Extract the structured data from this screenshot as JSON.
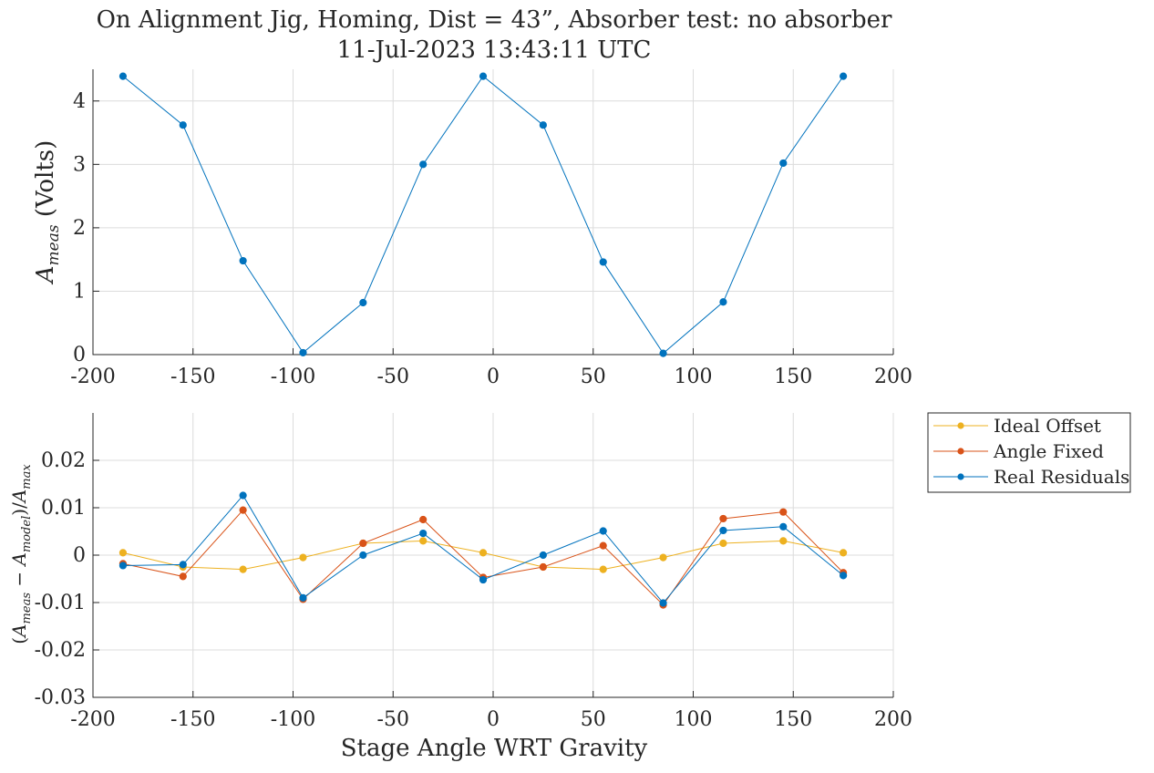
{
  "figure": {
    "title_line1": "On Alignment Jig, Homing, Dist = 43”, Absorber test: no absorber",
    "title_line2": "11-Jul-2023 13:43:11 UTC"
  },
  "chart_data": [
    {
      "type": "line",
      "title": "On Alignment Jig, Homing, Dist = 43”, Absorber test: no absorber — 11-Jul-2023 13:43:11 UTC",
      "xlabel": "",
      "ylabel": "A_meas (Volts)",
      "xlim": [
        -200,
        200
      ],
      "ylim": [
        0,
        4.5
      ],
      "xticks": [
        -200,
        -150,
        -100,
        -50,
        0,
        50,
        100,
        150,
        200
      ],
      "yticks": [
        0,
        1,
        2,
        3,
        4
      ],
      "xtick_labels": [
        "-200",
        "-150",
        "-100",
        "-50",
        "0",
        "50",
        "100",
        "150",
        "200"
      ],
      "ytick_labels": [
        "0",
        "1",
        "2",
        "3",
        "4"
      ],
      "grid": true,
      "x": [
        -185,
        -155,
        -125,
        -95,
        -65,
        -35,
        -5,
        25,
        55,
        85,
        115,
        145,
        175
      ],
      "series": [
        {
          "name": "",
          "color": "#0072BD",
          "values": [
            4.39,
            3.62,
            1.48,
            0.03,
            0.82,
            3.0,
            4.39,
            3.62,
            1.46,
            0.02,
            0.83,
            3.02,
            4.39
          ]
        }
      ]
    },
    {
      "type": "line",
      "xlabel": "Stage Angle WRT Gravity",
      "ylabel": "(A_meas − A_model)/A_max",
      "xlim": [
        -200,
        200
      ],
      "ylim": [
        -0.03,
        0.03
      ],
      "xticks": [
        -200,
        -150,
        -100,
        -50,
        0,
        50,
        100,
        150,
        200
      ],
      "yticks": [
        -0.03,
        -0.02,
        -0.01,
        0,
        0.01,
        0.02
      ],
      "xtick_labels": [
        "-200",
        "-150",
        "-100",
        "-50",
        "0",
        "50",
        "100",
        "150",
        "200"
      ],
      "ytick_labels": [
        "-0.03",
        "-0.02",
        "-0.01",
        "0",
        "0.01",
        "0.02"
      ],
      "grid": true,
      "legend_position": "outside-right-top",
      "x": [
        -185,
        -155,
        -125,
        -95,
        -65,
        -35,
        -5,
        25,
        55,
        85,
        115,
        145,
        175
      ],
      "series": [
        {
          "name": "Ideal Offset",
          "color": "#EDB120",
          "values": [
            0.0005,
            -0.0025,
            -0.003,
            -0.0005,
            0.0025,
            0.003,
            0.0005,
            -0.0025,
            -0.003,
            -0.0005,
            0.0025,
            0.003,
            0.0005
          ]
        },
        {
          "name": "Angle Fixed",
          "color": "#D95319",
          "values": [
            -0.0018,
            -0.0045,
            0.0095,
            -0.0093,
            0.0025,
            0.0075,
            -0.0047,
            -0.0025,
            0.002,
            -0.0105,
            0.0077,
            0.0091,
            -0.0037
          ]
        },
        {
          "name": "Real Residuals",
          "color": "#0072BD",
          "values": [
            -0.0022,
            -0.002,
            0.0126,
            -0.009,
            0.0,
            0.0046,
            -0.0052,
            0.0,
            0.0051,
            -0.0101,
            0.0052,
            0.006,
            -0.0043
          ]
        }
      ]
    }
  ]
}
